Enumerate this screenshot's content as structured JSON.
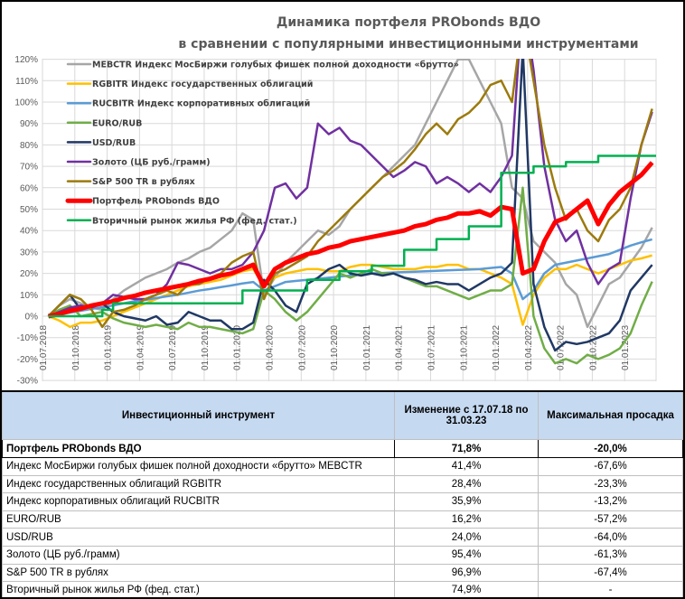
{
  "chart_data": {
    "type": "line",
    "title": [
      "Динамика портфеля PRObonds ВДО",
      "в сравнении с популярными инвестиционными инструментами"
    ],
    "ylim": [
      -30,
      120
    ],
    "y_unit": "%",
    "y_ticks": [
      "-30%",
      "-20%",
      "-10%",
      "0%",
      "10%",
      "20%",
      "30%",
      "40%",
      "50%",
      "60%",
      "70%",
      "80%",
      "90%",
      "100%",
      "110%",
      "120%"
    ],
    "x_ticks": [
      "01.07.2018",
      "01.10.2018",
      "01.01.2019",
      "01.04.2019",
      "01.07.2019",
      "01.10.2019",
      "01.01.2020",
      "01.04.2020",
      "01.07.2020",
      "01.10.2020",
      "01.01.2021",
      "01.04.2021",
      "01.07.2021",
      "01.10.2021",
      "01.01.2022",
      "01.04.2022",
      "01.07.2022",
      "01.10.2022",
      "01.01.2023"
    ],
    "grid": true,
    "legend": "top-left",
    "x": [
      "2018-07",
      "2018-08",
      "2018-09",
      "2018-10",
      "2018-11",
      "2018-12",
      "2019-01",
      "2019-02",
      "2019-03",
      "2019-04",
      "2019-05",
      "2019-06",
      "2019-07",
      "2019-08",
      "2019-09",
      "2019-10",
      "2019-11",
      "2019-12",
      "2020-01",
      "2020-02",
      "2020-03",
      "2020-04",
      "2020-05",
      "2020-06",
      "2020-07",
      "2020-08",
      "2020-09",
      "2020-10",
      "2020-11",
      "2020-12",
      "2021-01",
      "2021-02",
      "2021-03",
      "2021-04",
      "2021-05",
      "2021-06",
      "2021-07",
      "2021-08",
      "2021-09",
      "2021-10",
      "2021-11",
      "2021-12",
      "2022-01",
      "2022-02",
      "2022-03",
      "2022-04",
      "2022-05",
      "2022-06",
      "2022-07",
      "2022-08",
      "2022-09",
      "2022-10",
      "2022-11",
      "2022-12",
      "2023-01",
      "2023-02",
      "2023-03"
    ],
    "series": [
      {
        "name": "MEBCTR Индекс МосБиржи голубых фишек полной доходности «брутто»",
        "color": "#a6a6a6",
        "width": 2.5,
        "values": [
          0,
          5,
          8,
          6,
          4,
          3,
          8,
          12,
          15,
          18,
          20,
          22,
          25,
          27,
          30,
          32,
          36,
          40,
          48,
          45,
          10,
          18,
          25,
          30,
          35,
          40,
          38,
          42,
          50,
          55,
          60,
          65,
          70,
          75,
          80,
          90,
          100,
          110,
          120,
          120,
          110,
          100,
          90,
          60,
          55,
          35,
          30,
          25,
          15,
          10,
          -5,
          5,
          15,
          18,
          25,
          32,
          41.4
        ]
      },
      {
        "name": "RGBITR Индекс государственных облигаций",
        "color": "#ffc000",
        "width": 2.5,
        "values": [
          0,
          -2,
          -5,
          -3,
          -3,
          -2,
          0,
          2,
          4,
          6,
          8,
          10,
          12,
          14,
          15,
          16,
          17,
          19,
          21,
          22,
          14,
          18,
          20,
          21,
          22,
          22,
          21,
          21,
          23,
          24,
          24,
          23,
          22,
          22,
          22,
          23,
          23,
          24,
          24,
          22,
          22,
          20,
          18,
          15,
          -4,
          10,
          18,
          22,
          22,
          24,
          22,
          20,
          22,
          24,
          26,
          27,
          28.4
        ]
      },
      {
        "name": "RUCBITR Индекс корпоративных облигаций",
        "color": "#5b9bd5",
        "width": 2.5,
        "values": [
          0,
          0.8,
          1.7,
          2.5,
          3.4,
          4.2,
          5,
          6,
          7,
          7.6,
          8.5,
          9.3,
          10,
          11,
          12,
          12.7,
          13.6,
          14.4,
          15.3,
          16,
          12,
          14,
          16,
          16.5,
          17,
          17.5,
          18,
          18.5,
          19,
          19.5,
          20,
          20.2,
          20.4,
          20.6,
          20.8,
          21,
          21.2,
          21.4,
          21.6,
          21.8,
          22,
          22.5,
          23,
          20,
          8,
          12,
          20,
          24,
          25,
          26,
          27,
          28,
          29,
          31,
          33,
          34.5,
          35.9
        ]
      },
      {
        "name": "EURO/RUB",
        "color": "#70ad47",
        "width": 2.5,
        "values": [
          0,
          3,
          5,
          0,
          1,
          2,
          -1,
          -3,
          -4,
          -5,
          -4,
          -5,
          -6,
          -3,
          -5,
          -5,
          -6,
          -7,
          -8,
          -6,
          12,
          8,
          2,
          -2,
          2,
          8,
          14,
          20,
          18,
          20,
          22,
          20,
          20,
          18,
          16,
          14,
          14,
          12,
          10,
          8,
          10,
          12,
          12,
          15,
          60,
          0,
          -15,
          -22,
          -20,
          -22,
          -18,
          -20,
          -18,
          -15,
          -8,
          5,
          16.2
        ]
      },
      {
        "name": "USD/RUB",
        "color": "#203864",
        "width": 2.5,
        "values": [
          0,
          5,
          10,
          3,
          5,
          6,
          2,
          0,
          -1,
          -2,
          0,
          -4,
          -3,
          2,
          0,
          -2,
          -2,
          -6,
          -6,
          -3,
          17,
          12,
          5,
          2,
          15,
          18,
          22,
          24,
          20,
          19,
          20,
          19,
          20,
          18,
          17,
          15,
          16,
          15,
          15,
          12,
          15,
          18,
          20,
          25,
          125,
          15,
          -5,
          -16,
          -12,
          -13,
          -12,
          -10,
          -8,
          -2,
          12,
          18,
          24
        ]
      },
      {
        "name": "Золото (ЦБ руб./грамм)",
        "color": "#7030a0",
        "width": 2.5,
        "values": [
          0,
          2,
          4,
          5,
          4,
          6,
          10,
          9,
          8,
          8,
          10,
          15,
          25,
          24,
          22,
          20,
          22,
          22,
          24,
          30,
          40,
          60,
          62,
          55,
          60,
          90,
          85,
          88,
          82,
          80,
          75,
          70,
          65,
          68,
          72,
          70,
          62,
          65,
          62,
          58,
          62,
          58,
          65,
          75,
          150,
          115,
          70,
          45,
          35,
          40,
          25,
          15,
          22,
          25,
          55,
          80,
          95.4
        ]
      },
      {
        "name": "S&P 500 TR в рублях",
        "color": "#9c7a0c",
        "width": 2.5,
        "values": [
          0,
          5,
          10,
          8,
          3,
          -5,
          2,
          3,
          5,
          8,
          10,
          12,
          10,
          15,
          15,
          18,
          20,
          25,
          28,
          30,
          8,
          20,
          22,
          25,
          28,
          35,
          40,
          45,
          50,
          55,
          60,
          65,
          68,
          72,
          78,
          85,
          90,
          85,
          92,
          95,
          100,
          108,
          110,
          100,
          140,
          110,
          80,
          60,
          45,
          50,
          40,
          35,
          45,
          50,
          60,
          80,
          96.9
        ]
      },
      {
        "name": "Портфель PRObonds ВДО",
        "color": "#ff0000",
        "width": 5,
        "values": [
          0,
          1,
          2.5,
          3.5,
          5,
          6,
          7,
          8.5,
          9.5,
          11,
          12,
          13,
          14,
          15,
          16.5,
          17.5,
          19,
          20,
          22,
          24,
          14,
          22,
          25,
          27,
          29,
          30,
          32,
          33,
          35,
          36,
          37,
          38,
          39,
          40,
          42,
          43,
          45,
          46,
          48,
          48,
          49,
          47,
          51,
          50,
          20,
          22,
          35,
          44,
          46,
          50,
          54,
          43,
          52,
          58,
          62,
          66,
          71.8
        ]
      },
      {
        "name": "Вторичный рынок жилья РФ (фед. стат.)",
        "color": "#00b050",
        "width": 2.5,
        "step": true,
        "values": [
          0,
          0,
          0,
          0,
          0,
          3,
          6,
          6,
          6,
          6,
          6,
          6,
          6,
          6,
          6,
          6,
          6,
          6,
          12,
          12,
          12,
          12,
          12,
          12,
          17,
          17,
          17,
          21,
          21,
          21,
          23.6,
          23.6,
          23.6,
          31,
          31,
          31,
          36,
          36,
          36,
          42,
          42,
          42,
          67,
          67,
          67,
          70,
          70,
          70,
          72,
          72,
          72,
          74.9,
          74.9,
          74.9,
          74.9,
          74.9,
          74.9
        ]
      }
    ]
  },
  "table": {
    "headers": [
      "Инвестиционный инструмент",
      "Изменение с 17.07.18 по 31.03.23",
      "Максимальная просадка"
    ],
    "rows": [
      {
        "name": "Портфель PRObonds ВДО",
        "change": "71,8%",
        "drawdown": "-20,0%"
      },
      {
        "name": "Индекс МосБиржи голубых фишек полной доходности «брутто» MEBCTR",
        "change": "41,4%",
        "drawdown": "-67,6%"
      },
      {
        "name": "Индекс государственных облигаций RGBITR",
        "change": "28,4%",
        "drawdown": "-23,3%"
      },
      {
        "name": "Индекс корпоративных облигаций RUCBITR",
        "change": "35,9%",
        "drawdown": "-13,2%"
      },
      {
        "name": "EURO/RUB",
        "change": "16,2%",
        "drawdown": "-57,2%"
      },
      {
        "name": "USD/RUB",
        "change": "24,0%",
        "drawdown": "-64,0%"
      },
      {
        "name": "Золото (ЦБ руб./грамм)",
        "change": "95,4%",
        "drawdown": "-61,3%"
      },
      {
        "name": "S&P 500 TR в рублях",
        "change": "96,9%",
        "drawdown": "-67,4%"
      },
      {
        "name": "Вторичный рынок жилья РФ (фед. стат.)",
        "change": "74,9%",
        "drawdown": "-"
      }
    ]
  }
}
